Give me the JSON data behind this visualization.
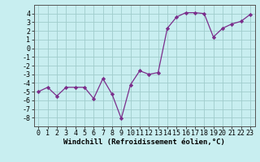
{
  "x": [
    0,
    1,
    2,
    3,
    4,
    5,
    6,
    7,
    8,
    9,
    10,
    11,
    12,
    13,
    14,
    15,
    16,
    17,
    18,
    19,
    20,
    21,
    22,
    23
  ],
  "y": [
    -5.0,
    -4.5,
    -5.5,
    -4.5,
    -4.5,
    -4.5,
    -5.8,
    -3.5,
    -5.3,
    -8.1,
    -4.2,
    -2.6,
    -3.0,
    -2.8,
    2.3,
    3.6,
    4.1,
    4.1,
    4.0,
    1.3,
    2.3,
    2.8,
    3.1,
    3.9
  ],
  "line_color": "#7b2d8b",
  "marker": "D",
  "marker_size": 2.2,
  "bg_color": "#c8eef0",
  "grid_color": "#a0cccc",
  "xlabel": "Windchill (Refroidissement éolien,°C)",
  "xlabel_fontsize": 6.5,
  "tick_fontsize": 6.0,
  "ylim": [
    -9,
    5
  ],
  "xlim": [
    -0.5,
    23.5
  ],
  "yticks": [
    -8,
    -7,
    -6,
    -5,
    -4,
    -3,
    -2,
    -1,
    0,
    1,
    2,
    3,
    4
  ],
  "xticks": [
    0,
    1,
    2,
    3,
    4,
    5,
    6,
    7,
    8,
    9,
    10,
    11,
    12,
    13,
    14,
    15,
    16,
    17,
    18,
    19,
    20,
    21,
    22,
    23
  ],
  "spine_color": "#555555",
  "linewidth": 0.9
}
